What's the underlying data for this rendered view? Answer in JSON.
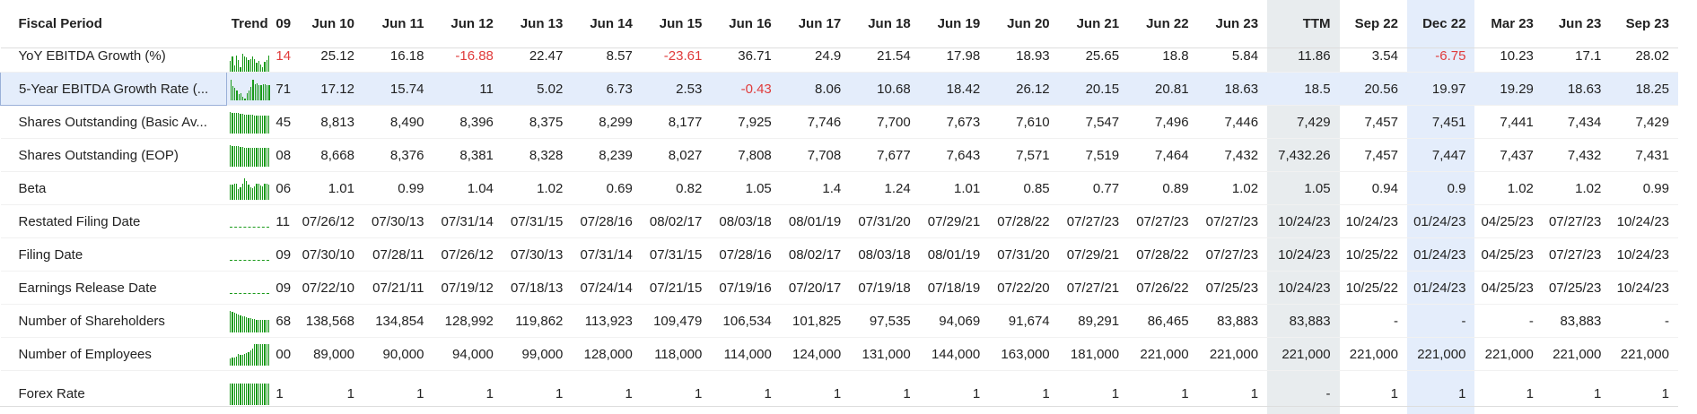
{
  "header": {
    "name": "Fiscal Period",
    "trend": "Trend",
    "y09": "09",
    "cols": [
      "Jun 10",
      "Jun 11",
      "Jun 12",
      "Jun 13",
      "Jun 14",
      "Jun 15",
      "Jun 16",
      "Jun 17",
      "Jun 18",
      "Jun 19",
      "Jun 20",
      "Jun 21",
      "Jun 22",
      "Jun 23",
      "TTM",
      "Sep 22",
      "Dec 22",
      "Mar 23",
      "Jun 23",
      "Sep 23"
    ]
  },
  "colors": {
    "positive_trend": "#1a9a1a",
    "negative": "#e03b3b",
    "ttm_bg": "#e8ecee",
    "highlight_bg": "#e4edfb"
  },
  "rows": [
    {
      "name": "YoY EBITDA Growth (%)",
      "y09": "14",
      "y09_neg": true,
      "values": [
        "25.12",
        "16.18",
        "-16.88",
        "22.47",
        "8.57",
        "-23.61",
        "36.71",
        "24.9",
        "21.54",
        "17.98",
        "18.93",
        "25.65",
        "18.8",
        "5.84",
        "11.86",
        "3.54",
        "-6.75",
        "10.23",
        "17.1",
        "28.02"
      ],
      "trend": [
        0.5,
        0.7,
        0.3,
        0.75,
        0.55,
        0.2,
        0.85,
        0.7,
        0.65,
        0.55,
        0.58,
        0.7,
        0.58,
        0.4,
        0.5,
        0.35,
        0.2,
        0.45,
        0.55,
        0.75
      ]
    },
    {
      "name": "5-Year EBITDA Growth Rate (...",
      "y09": "71",
      "values": [
        "17.12",
        "15.74",
        "11",
        "5.02",
        "6.73",
        "2.53",
        "-0.43",
        "8.06",
        "10.68",
        "18.42",
        "26.12",
        "20.15",
        "20.81",
        "18.63",
        "18.5",
        "20.56",
        "19.97",
        "19.29",
        "18.63",
        "18.25"
      ],
      "trend": [
        0.95,
        0.65,
        0.6,
        0.45,
        0.3,
        0.35,
        0.15,
        0.1,
        0.35,
        0.45,
        0.62,
        0.95,
        0.75,
        0.78,
        0.7,
        0.72,
        0.75,
        0.73,
        0.72,
        0.7
      ]
    },
    {
      "name": "Shares Outstanding (Basic Av...",
      "y09": "45",
      "values": [
        "8,813",
        "8,490",
        "8,396",
        "8,375",
        "8,299",
        "8,177",
        "7,925",
        "7,746",
        "7,700",
        "7,673",
        "7,610",
        "7,547",
        "7,496",
        "7,446",
        "7,429",
        "7,457",
        "7,451",
        "7,441",
        "7,434",
        "7,429"
      ],
      "trend": [
        1,
        0.97,
        0.96,
        0.95,
        0.94,
        0.93,
        0.9,
        0.88,
        0.87,
        0.87,
        0.86,
        0.86,
        0.85,
        0.85,
        0.84,
        0.85,
        0.85,
        0.84,
        0.84,
        0.84
      ]
    },
    {
      "name": "Shares Outstanding (EOP)",
      "y09": "08",
      "values": [
        "8,668",
        "8,376",
        "8,381",
        "8,328",
        "8,239",
        "8,027",
        "7,808",
        "7,708",
        "7,677",
        "7,643",
        "7,571",
        "7,519",
        "7,464",
        "7,432",
        "7,432.26",
        "7,457",
        "7,447",
        "7,437",
        "7,432",
        "7,431"
      ],
      "trend": [
        1,
        0.97,
        0.97,
        0.96,
        0.95,
        0.93,
        0.9,
        0.89,
        0.89,
        0.88,
        0.87,
        0.87,
        0.86,
        0.86,
        0.86,
        0.86,
        0.86,
        0.86,
        0.86,
        0.86
      ]
    },
    {
      "name": "Beta",
      "y09": "06",
      "values": [
        "1.01",
        "0.99",
        "1.04",
        "1.02",
        "0.69",
        "0.82",
        "1.05",
        "1.4",
        "1.24",
        "1.01",
        "0.85",
        "0.77",
        "0.89",
        "1.02",
        "1.05",
        "0.94",
        "0.9",
        "1.02",
        "1.02",
        "0.99"
      ],
      "trend": [
        0.72,
        0.7,
        0.74,
        0.73,
        0.5,
        0.58,
        0.75,
        1,
        0.88,
        0.72,
        0.6,
        0.55,
        0.64,
        0.73,
        0.75,
        0.67,
        0.64,
        0.73,
        0.73,
        0.7
      ]
    },
    {
      "name": "Restated Filing Date",
      "y09": "11",
      "flat": true,
      "values": [
        "07/26/12",
        "07/30/13",
        "07/31/14",
        "07/31/15",
        "07/28/16",
        "08/02/17",
        "08/03/18",
        "08/01/19",
        "07/31/20",
        "07/29/21",
        "07/28/22",
        "07/27/23",
        "07/27/23",
        "07/27/23",
        "10/24/23",
        "10/24/23",
        "01/24/23",
        "04/25/23",
        "07/27/23",
        "10/24/23"
      ]
    },
    {
      "name": "Filing Date",
      "y09": "09",
      "flat": true,
      "values": [
        "07/30/10",
        "07/28/11",
        "07/26/12",
        "07/30/13",
        "07/31/14",
        "07/31/15",
        "07/28/16",
        "08/02/17",
        "08/03/18",
        "08/01/19",
        "07/31/20",
        "07/29/21",
        "07/28/22",
        "07/27/23",
        "10/24/23",
        "10/25/22",
        "01/24/23",
        "04/25/23",
        "07/27/23",
        "10/24/23"
      ]
    },
    {
      "name": "Earnings Release Date",
      "y09": "09",
      "flat": true,
      "values": [
        "07/22/10",
        "07/21/11",
        "07/19/12",
        "07/18/13",
        "07/24/14",
        "07/21/15",
        "07/19/16",
        "07/20/17",
        "07/19/18",
        "07/18/19",
        "07/22/20",
        "07/27/21",
        "07/26/22",
        "07/25/23",
        "10/24/23",
        "10/25/22",
        "01/24/23",
        "04/25/23",
        "07/25/23",
        "10/24/23"
      ]
    },
    {
      "name": "Number of Shareholders",
      "y09": "68",
      "values": [
        "138,568",
        "134,854",
        "128,992",
        "119,862",
        "113,923",
        "109,479",
        "106,534",
        "101,825",
        "97,535",
        "94,069",
        "91,674",
        "89,291",
        "86,465",
        "83,883",
        "83,883",
        "-",
        "-",
        "-",
        "83,883",
        "-"
      ],
      "trend": [
        1,
        0.97,
        0.93,
        0.86,
        0.82,
        0.79,
        0.77,
        0.73,
        0.7,
        0.68,
        0.66,
        0.64,
        0.62,
        0.6,
        0.6,
        0.6,
        0.6,
        0.6,
        0.6,
        0.6
      ]
    },
    {
      "name": "Number of Employees",
      "y09": "00",
      "values": [
        "89,000",
        "90,000",
        "94,000",
        "99,000",
        "128,000",
        "118,000",
        "114,000",
        "124,000",
        "131,000",
        "144,000",
        "163,000",
        "181,000",
        "221,000",
        "221,000",
        "221,000",
        "221,000",
        "221,000",
        "221,000",
        "221,000",
        "221,000"
      ],
      "trend": [
        0.35,
        0.36,
        0.38,
        0.4,
        0.55,
        0.5,
        0.48,
        0.53,
        0.57,
        0.63,
        0.72,
        0.8,
        1,
        1,
        1,
        1,
        1,
        1,
        1,
        1
      ]
    },
    {
      "name": "Forex Rate",
      "y09": "1",
      "values": [
        "1",
        "1",
        "1",
        "1",
        "1",
        "1",
        "1",
        "1",
        "1",
        "1",
        "1",
        "1",
        "1",
        "1",
        "-",
        "1",
        "1",
        "1",
        "1",
        "1"
      ],
      "trend": [
        1,
        1,
        1,
        1,
        1,
        1,
        1,
        1,
        1,
        1,
        1,
        1,
        1,
        1,
        1,
        1,
        1,
        1,
        1,
        1
      ]
    }
  ]
}
